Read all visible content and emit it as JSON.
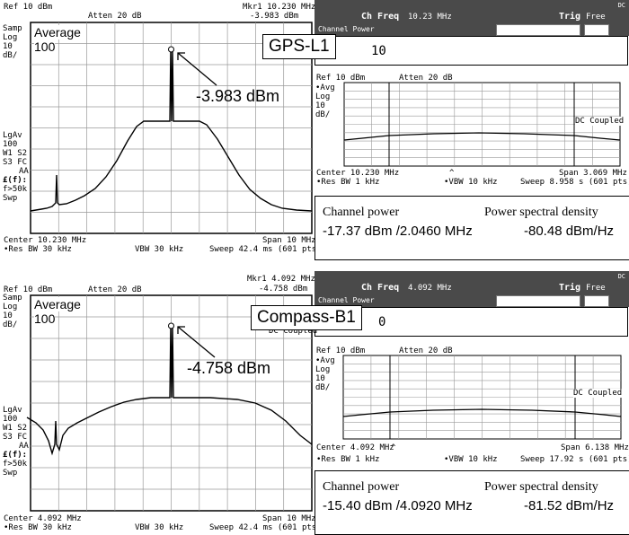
{
  "panels": [
    {
      "id": "gps",
      "left": {
        "ref": "Ref 10 dBm",
        "atten": "Atten 20 dB",
        "mkr_label": "Mkr1 10.230 MHz",
        "mkr_value": "-3.983 dBm",
        "side_top": [
          "Samp",
          "Log",
          "10",
          "dB/"
        ],
        "side_bottom": [
          "LgAv",
          "100",
          "W1  S2",
          "S3  FC",
          "AA",
          "£(f):",
          "f>50k",
          "Swp"
        ],
        "average_label": "Average",
        "average_count": "100",
        "annotation": "-3.983 dBm",
        "center": "Center 10.230 MHz",
        "span": "Span 10 MHz",
        "res_bw": "•Res BW 30 kHz",
        "vbw": "VBW 30 kHz",
        "sweep": "Sweep 42.4 ms (601 pts)"
      },
      "right": {
        "dc_flag": "DC",
        "ch_freq_label": "Ch Freq",
        "ch_freq_value": "10.23 MHz",
        "trig_label": "Trig",
        "trig_value": "Free",
        "mode_label": "Channel Power",
        "field_value": "10",
        "callout": "GPS-L1",
        "ref": "Ref 10 dBm",
        "atten": "Atten 20 dB",
        "side": [
          "•Avg",
          "Log",
          "10",
          "dB/"
        ],
        "coupled": "DC Coupled",
        "center": "Center 10.230 MHz",
        "span": "Span 3.069 MHz",
        "res_bw": "•Res BW 1 kHz",
        "vbw": "•VBW 10 kHz",
        "sweep": "Sweep 8.958 s (601 pts)",
        "ch_power_label": "Channel power",
        "ch_power_value": "-17.37 dBm /2.0460 MHz",
        "psd_label": "Power spectral density",
        "psd_value": "-80.48 dBm/Hz"
      }
    },
    {
      "id": "compass",
      "left": {
        "ref": "Ref 10 dBm",
        "atten": "Atten 20 dB",
        "mkr_label": "Mkr1 4.092 MHz",
        "mkr_value": "-4.758 dBm",
        "side_top": [
          "Samp",
          "Log",
          "10",
          "dB/"
        ],
        "side_bottom": [
          "LgAv",
          "100",
          "W1  S2",
          "S3  FC",
          "AA",
          "£(f):",
          "f>50k",
          "Swp"
        ],
        "average_label": "Average",
        "average_count": "100",
        "annotation": "-4.758 dBm",
        "center": "Center 4.092 MHz",
        "span": "Span 10 MHz",
        "res_bw": "•Res BW 30 kHz",
        "vbw": "VBW 30 kHz",
        "sweep": "Sweep 42.4 ms (601 pts)"
      },
      "right": {
        "dc_flag": "DC",
        "ch_freq_label": "Ch Freq",
        "ch_freq_value": "4.092 MHz",
        "trig_label": "Trig",
        "trig_value": "Free",
        "mode_label": "Channel Power",
        "field_value": "0",
        "under_text": "DC Coupled",
        "callout": "Compass-B1",
        "ref": "Ref 10 dBm",
        "atten": "Atten 20 dB",
        "side": [
          "•Avg",
          "Log",
          "10",
          "dB/"
        ],
        "coupled": "DC Coupled",
        "center": "Center 4.092 MHz",
        "span": "Span 6.138 MHz",
        "res_bw": "•Res BW 1 kHz",
        "vbw": "•VBW 10 kHz",
        "sweep": "Sweep 17.92 s (601 pts)",
        "ch_power_label": "Channel power",
        "ch_power_value": "-15.40 dBm /4.0920 MHz",
        "psd_label": "Power spectral density",
        "psd_value": "-81.52 dBm/Hz"
      }
    }
  ],
  "colors": {
    "bar": "#4a4a4a",
    "grid": "#9a9a9a",
    "trace": "#000000"
  }
}
